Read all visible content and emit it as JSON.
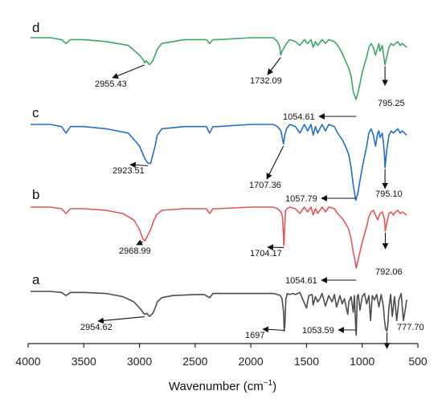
{
  "chart_data": {
    "type": "line",
    "title": "",
    "xlabel": "Wavenumber (cm",
    "xlabel_sup": "−1",
    "xlabel_close": ")",
    "ylabel": "",
    "xlim": [
      4000,
      500
    ],
    "xticks": [
      4000,
      3500,
      3000,
      2500,
      2000,
      1500,
      1000,
      500
    ],
    "grid": false,
    "legend": "none",
    "series": [
      {
        "name": "a",
        "color": "#4d4d4d",
        "x": [
          3980,
          3800,
          3700,
          3660,
          3620,
          3500,
          3300,
          3150,
          3050,
          2990,
          2970,
          2955,
          2935,
          2910,
          2880,
          2860,
          2840,
          2800,
          2700,
          2500,
          2420,
          2370,
          2340,
          2300,
          2100,
          1900,
          1800,
          1760,
          1735,
          1720,
          1706,
          1700,
          1694,
          1686,
          1672,
          1655,
          1620,
          1600,
          1560,
          1500,
          1480,
          1450,
          1440,
          1420,
          1400,
          1380,
          1360,
          1330,
          1300,
          1270,
          1250,
          1230,
          1200,
          1180,
          1160,
          1130,
          1120,
          1100,
          1080,
          1070,
          1060,
          1054,
          1050,
          1045,
          1035,
          1020,
          1000,
          980,
          960,
          940,
          925,
          910,
          890,
          870,
          850,
          830,
          810,
          800,
          790,
          778,
          770,
          760,
          745,
          730,
          710,
          690,
          670,
          650,
          630,
          610,
          600
        ],
        "y": [
          100,
          100,
          99,
          96,
          99,
          99,
          98,
          95,
          90,
          83,
          80,
          78,
          79,
          76,
          79,
          84,
          90,
          94,
          96,
          97,
          97,
          94,
          98,
          98,
          98,
          98,
          98,
          97,
          96,
          93,
          80,
          62,
          68,
          93,
          98,
          97,
          98,
          97,
          99,
          84,
          96,
          97,
          87,
          95,
          90,
          93,
          98,
          86,
          96,
          90,
          97,
          85,
          96,
          88,
          93,
          78,
          90,
          95,
          80,
          96,
          70,
          58,
          72,
          95,
          97,
          82,
          95,
          98,
          88,
          96,
          72,
          96,
          92,
          97,
          85,
          97,
          86,
          73,
          64,
          62,
          68,
          85,
          97,
          76,
          95,
          72,
          92,
          98,
          72,
          85,
          92
        ]
      },
      {
        "name": "b",
        "color": "#e15759",
        "x": [
          3980,
          3800,
          3700,
          3660,
          3620,
          3500,
          3300,
          3150,
          3050,
          3000,
          2969,
          2950,
          2930,
          2905,
          2880,
          2850,
          2800,
          2600,
          2400,
          2370,
          2340,
          2300,
          2000,
          1800,
          1760,
          1730,
          1715,
          1704,
          1696,
          1688,
          1675,
          1650,
          1600,
          1560,
          1520,
          1490,
          1460,
          1440,
          1420,
          1400,
          1360,
          1330,
          1300,
          1250,
          1220,
          1180,
          1150,
          1120,
          1100,
          1080,
          1060,
          1054,
          1040,
          1020,
          1000,
          960,
          940,
          920,
          900,
          880,
          860,
          850,
          840,
          820,
          810,
          800,
          792,
          780,
          760,
          740,
          720,
          700,
          680,
          660,
          640,
          620,
          600
        ],
        "y": [
          100,
          100,
          99,
          96,
          99,
          99,
          98,
          96,
          92,
          86,
          80,
          79,
          82,
          85,
          90,
          95,
          98,
          99,
          99,
          96,
          99,
          99,
          100,
          100,
          99,
          97,
          94,
          76,
          88,
          98,
          99,
          100,
          99,
          96,
          100,
          97,
          100,
          95,
          99,
          96,
          100,
          97,
          100,
          99,
          96,
          93,
          90,
          86,
          80,
          72,
          65,
          62,
          66,
          72,
          78,
          88,
          94,
          97,
          98,
          95,
          92,
          94,
          96,
          97,
          95,
          92,
          85,
          90,
          96,
          97,
          95,
          97,
          98,
          96,
          97,
          96,
          95
        ]
      },
      {
        "name": "c",
        "color": "#1f6fd1",
        "x": [
          3980,
          3800,
          3700,
          3660,
          3620,
          3500,
          3300,
          3100,
          3000,
          2950,
          2923,
          2900,
          2880,
          2860,
          2840,
          2800,
          2600,
          2400,
          2370,
          2340,
          2300,
          2000,
          1800,
          1760,
          1730,
          1707,
          1695,
          1680,
          1650,
          1600,
          1560,
          1520,
          1490,
          1460,
          1440,
          1420,
          1400,
          1360,
          1330,
          1300,
          1250,
          1220,
          1180,
          1150,
          1120,
          1100,
          1080,
          1058,
          1040,
          1020,
          1000,
          960,
          940,
          920,
          900,
          880,
          860,
          850,
          840,
          820,
          810,
          800,
          795,
          780,
          760,
          740,
          720,
          700,
          680,
          660,
          640,
          620,
          600
        ],
        "y": [
          100,
          100,
          99,
          96,
          99,
          99,
          98,
          96,
          90,
          84,
          82,
          82,
          86,
          90,
          95,
          98,
          99,
          99,
          96,
          99,
          99,
          100,
          100,
          99,
          97,
          91,
          95,
          98,
          100,
          99,
          96,
          100,
          97,
          100,
          95,
          99,
          96,
          100,
          97,
          100,
          99,
          96,
          93,
          90,
          86,
          80,
          72,
          65,
          68,
          74,
          80,
          90,
          96,
          98,
          95,
          90,
          96,
          97,
          94,
          96,
          92,
          86,
          80,
          88,
          95,
          97,
          96,
          97,
          98,
          96,
          97,
          96,
          95
        ]
      },
      {
        "name": "d",
        "color": "#3aa866",
        "x": [
          3980,
          3800,
          3700,
          3660,
          3620,
          3500,
          3300,
          3100,
          3000,
          2960,
          2955,
          2940,
          2910,
          2880,
          2860,
          2840,
          2800,
          2600,
          2400,
          2370,
          2340,
          2300,
          2000,
          1800,
          1760,
          1740,
          1732,
          1720,
          1700,
          1680,
          1650,
          1600,
          1560,
          1520,
          1490,
          1460,
          1440,
          1420,
          1400,
          1360,
          1330,
          1300,
          1250,
          1220,
          1180,
          1150,
          1120,
          1100,
          1080,
          1055,
          1040,
          1020,
          1000,
          960,
          940,
          920,
          900,
          880,
          860,
          850,
          840,
          820,
          810,
          800,
          795,
          780,
          760,
          740,
          720,
          700,
          680,
          660,
          640,
          620,
          600
        ],
        "y": [
          100,
          100,
          99,
          97,
          99,
          99,
          98,
          96,
          91,
          88,
          87,
          88,
          86,
          88,
          91,
          94,
          97,
          99,
          99,
          97,
          99,
          99,
          100,
          100,
          98,
          95,
          91,
          93,
          95,
          97,
          99,
          98,
          96,
          99,
          97,
          99,
          95,
          98,
          96,
          99,
          97,
          99,
          98,
          96,
          92,
          88,
          84,
          80,
          72,
          68,
          71,
          76,
          82,
          90,
          95,
          97,
          95,
          91,
          95,
          97,
          93,
          96,
          92,
          88,
          86,
          90,
          95,
          97,
          96,
          97,
          98,
          96,
          97,
          96,
          95
        ]
      }
    ],
    "annotations": [
      {
        "series": "a",
        "label": "2954.62",
        "wavenumber": 2954.62
      },
      {
        "series": "a",
        "label": "1697",
        "wavenumber": 1697
      },
      {
        "series": "a",
        "label": "1053.59",
        "wavenumber": 1053.59
      },
      {
        "series": "a",
        "label": "777.70",
        "wavenumber": 777.7
      },
      {
        "series": "b",
        "label": "2968.99",
        "wavenumber": 2968.99
      },
      {
        "series": "b",
        "label": "1704.17",
        "wavenumber": 1704.17
      },
      {
        "series": "b",
        "label": "1054.61",
        "wavenumber": 1054.61
      },
      {
        "series": "b",
        "label": "792.06",
        "wavenumber": 792.06
      },
      {
        "series": "c",
        "label": "2923.51",
        "wavenumber": 2923.51
      },
      {
        "series": "c",
        "label": "1707.36",
        "wavenumber": 1707.36
      },
      {
        "series": "c",
        "label": "1057.79",
        "wavenumber": 1057.79
      },
      {
        "series": "c",
        "label": "795.10",
        "wavenumber": 795.1
      },
      {
        "series": "d",
        "label": "2955.43",
        "wavenumber": 2955.43
      },
      {
        "series": "d",
        "label": "1732.09",
        "wavenumber": 1732.09
      },
      {
        "series": "d",
        "label": "1054.61",
        "wavenumber": 1054.61
      },
      {
        "series": "d",
        "label": "795.25",
        "wavenumber": 795.25
      }
    ]
  }
}
